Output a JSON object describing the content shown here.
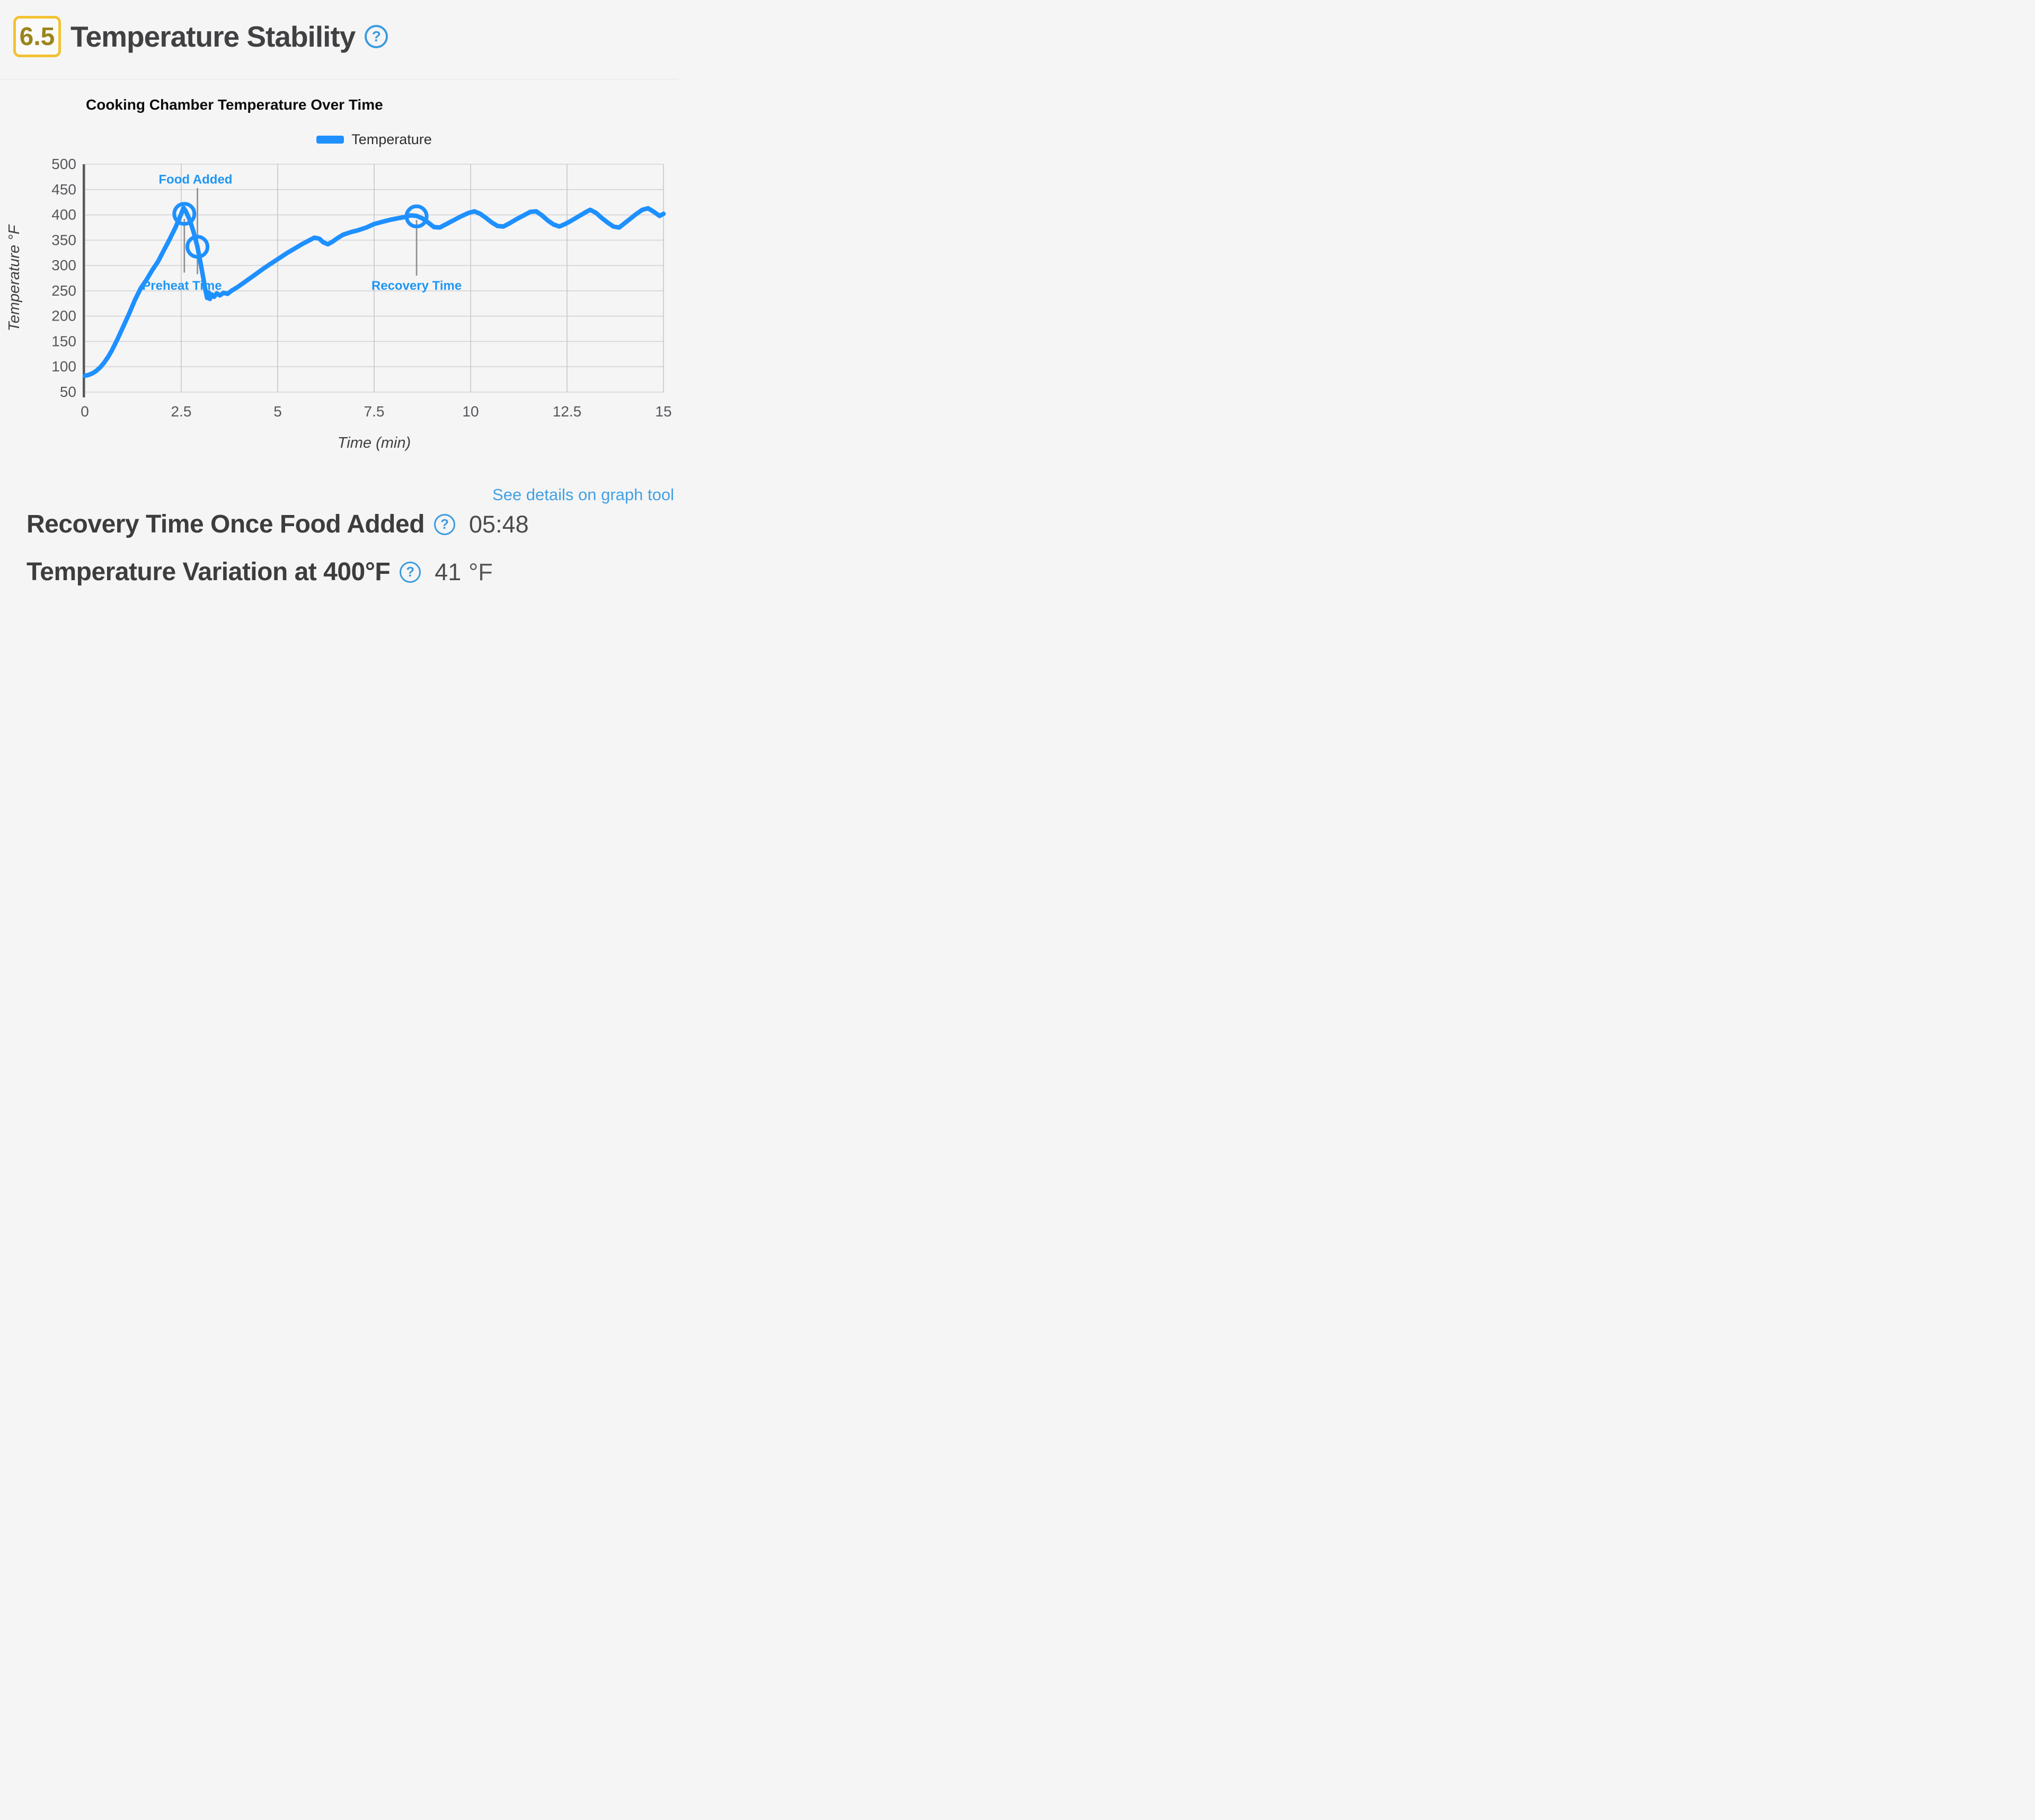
{
  "header": {
    "score": "6.5",
    "title": "Temperature Stability"
  },
  "icons": {
    "help_glyph": "?"
  },
  "chart_data": {
    "type": "line",
    "title": "Cooking Chamber Temperature Over Time",
    "xlabel": "Time (min)",
    "ylabel": "Temperature °F",
    "xlim": [
      0,
      15
    ],
    "ylim": [
      50,
      500
    ],
    "xticks": [
      0,
      2.5,
      5,
      7.5,
      10,
      12.5,
      15
    ],
    "yticks": [
      50,
      100,
      150,
      200,
      250,
      300,
      350,
      400,
      450,
      500
    ],
    "grid": true,
    "legend_position": "top-center",
    "series": [
      {
        "name": "Temperature",
        "color": "#1E90FF",
        "points": [
          [
            0,
            82
          ],
          [
            0.1,
            84
          ],
          [
            0.2,
            87
          ],
          [
            0.3,
            92
          ],
          [
            0.4,
            99
          ],
          [
            0.5,
            108
          ],
          [
            0.6,
            119
          ],
          [
            0.7,
            132
          ],
          [
            0.85,
            155
          ],
          [
            1.0,
            180
          ],
          [
            1.15,
            205
          ],
          [
            1.3,
            232
          ],
          [
            1.45,
            255
          ],
          [
            1.6,
            272
          ],
          [
            1.75,
            291
          ],
          [
            1.9,
            308
          ],
          [
            2.05,
            330
          ],
          [
            2.2,
            352
          ],
          [
            2.35,
            375
          ],
          [
            2.45,
            393
          ],
          [
            2.52,
            406
          ],
          [
            2.56,
            414
          ],
          [
            2.62,
            407
          ],
          [
            2.72,
            390
          ],
          [
            2.82,
            366
          ],
          [
            2.92,
            337
          ],
          [
            3.0,
            305
          ],
          [
            3.08,
            272
          ],
          [
            3.13,
            250
          ],
          [
            3.17,
            236
          ],
          [
            3.21,
            247
          ],
          [
            3.24,
            234
          ],
          [
            3.29,
            243
          ],
          [
            3.35,
            238
          ],
          [
            3.42,
            245
          ],
          [
            3.5,
            241
          ],
          [
            3.6,
            246
          ],
          [
            3.7,
            244
          ],
          [
            3.8,
            250
          ],
          [
            3.95,
            257
          ],
          [
            4.1,
            265
          ],
          [
            4.25,
            273
          ],
          [
            4.45,
            284
          ],
          [
            4.65,
            295
          ],
          [
            4.85,
            305
          ],
          [
            5.05,
            315
          ],
          [
            5.25,
            325
          ],
          [
            5.45,
            334
          ],
          [
            5.65,
            343
          ],
          [
            5.8,
            349
          ],
          [
            5.95,
            355
          ],
          [
            6.08,
            353
          ],
          [
            6.18,
            346
          ],
          [
            6.3,
            342
          ],
          [
            6.42,
            347
          ],
          [
            6.55,
            354
          ],
          [
            6.7,
            361
          ],
          [
            6.9,
            366
          ],
          [
            7.1,
            370
          ],
          [
            7.3,
            375
          ],
          [
            7.5,
            382
          ],
          [
            7.7,
            386
          ],
          [
            7.9,
            390
          ],
          [
            8.1,
            393
          ],
          [
            8.3,
            396
          ],
          [
            8.45,
            399
          ],
          [
            8.6,
            398
          ],
          [
            8.75,
            393
          ],
          [
            8.9,
            385
          ],
          [
            9.05,
            376
          ],
          [
            9.2,
            375
          ],
          [
            9.35,
            381
          ],
          [
            9.55,
            389
          ],
          [
            9.75,
            397
          ],
          [
            9.95,
            404
          ],
          [
            10.1,
            407
          ],
          [
            10.25,
            402
          ],
          [
            10.4,
            394
          ],
          [
            10.55,
            385
          ],
          [
            10.7,
            378
          ],
          [
            10.85,
            377
          ],
          [
            11.0,
            383
          ],
          [
            11.2,
            392
          ],
          [
            11.4,
            400
          ],
          [
            11.55,
            406
          ],
          [
            11.7,
            407
          ],
          [
            11.85,
            399
          ],
          [
            12.0,
            389
          ],
          [
            12.15,
            381
          ],
          [
            12.3,
            377
          ],
          [
            12.45,
            382
          ],
          [
            12.6,
            388
          ],
          [
            12.8,
            397
          ],
          [
            13.0,
            406
          ],
          [
            13.1,
            410
          ],
          [
            13.25,
            404
          ],
          [
            13.4,
            394
          ],
          [
            13.55,
            385
          ],
          [
            13.7,
            377
          ],
          [
            13.85,
            375
          ],
          [
            14.0,
            384
          ],
          [
            14.15,
            393
          ],
          [
            14.3,
            402
          ],
          [
            14.45,
            410
          ],
          [
            14.6,
            413
          ],
          [
            14.75,
            406
          ],
          [
            14.9,
            398
          ],
          [
            15.0,
            402
          ]
        ]
      }
    ],
    "markers": [
      {
        "x": 2.58,
        "y": 402
      },
      {
        "x": 2.92,
        "y": 337
      },
      {
        "x": 8.6,
        "y": 397
      }
    ],
    "annotations": [
      {
        "label": "Food Added",
        "line_x": 2.92,
        "line_top": 453,
        "line_bottom": 283,
        "label_x": 2.87,
        "label_y": 462
      },
      {
        "label": "Preheat Time",
        "line_x": 2.58,
        "line_top": 392,
        "line_bottom": 286,
        "label_x": 2.52,
        "label_y": 252
      },
      {
        "label": "Recovery Time",
        "line_x": 8.6,
        "line_top": 390,
        "line_bottom": 280,
        "label_x": 8.6,
        "label_y": 252
      }
    ]
  },
  "footer": {
    "link_label": "See details on graph tool",
    "metrics": [
      {
        "label": "Recovery Time Once Food Added",
        "value": "05:48",
        "unit": ""
      },
      {
        "label": "Temperature Variation at 400°F",
        "value": "41",
        "unit": "°F"
      }
    ]
  },
  "colors": {
    "background": "#F5F5F6",
    "accent_blue": "#1E90FF",
    "annotation_text": "#2196F3",
    "annotation_line": "#8F8F8F",
    "help_icon": "#3A9BE0",
    "link": "#42A0E2",
    "gold_border": "#F2C230",
    "gold_text": "#9B841A",
    "heading": "#414042",
    "text_dark": "#3D3D3D",
    "value": "#4B4B4B",
    "tick": "#56575A",
    "axis": "#58585A",
    "grid_h": "#D3D3D4",
    "grid_v": "#C6C6C8",
    "chart_title": "#0C0C0C",
    "legend_text": "#2E2E2E",
    "separator": "#E4E4E4"
  }
}
